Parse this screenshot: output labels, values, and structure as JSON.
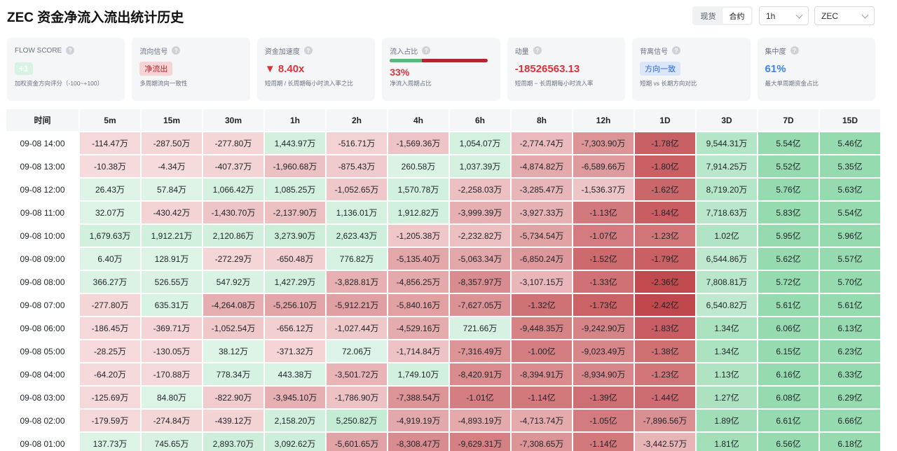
{
  "page": {
    "title": "ZEC 资金净流入流出统计历史"
  },
  "controls": {
    "market_tabs": [
      {
        "label": "现货",
        "active": false
      },
      {
        "label": "合约",
        "active": true
      }
    ],
    "interval": {
      "value": "1h"
    },
    "symbol": {
      "value": "ZEC"
    }
  },
  "cards": {
    "flow_score": {
      "label": "FLOW SCORE",
      "value": "+1",
      "sub": "加权资金方向评分（-100~+100）"
    },
    "flow_signal": {
      "label": "流向信号",
      "value": "净流出",
      "sub": "多周期流向一致性"
    },
    "acceleration": {
      "label": "资金加速度",
      "value": "▼ 8.40x",
      "sub": "短周期 / 长周期每小时流入率之比"
    },
    "inflow_ratio": {
      "label": "流入占比",
      "value": "33%",
      "fraction": 0.33,
      "sub": "净流入周期占比"
    },
    "momentum": {
      "label": "动量",
      "value": "-18526563.13",
      "sub": "短周期 − 长周期每小时流入率"
    },
    "divergence": {
      "label": "背离信号",
      "value": "方向一致",
      "sub": "短期 vs 长期方向对比"
    },
    "concentration": {
      "label": "集中度",
      "value": "61%",
      "sub": "最大单周期资金占比"
    }
  },
  "colors": {
    "green_base": "#d9f2e3",
    "red_base": "#f3d0d1",
    "accent_red": "#e0313b",
    "accent_blue": "#3b82f6"
  },
  "table": {
    "headers": [
      "时间",
      "5m",
      "15m",
      "30m",
      "1h",
      "2h",
      "4h",
      "6h",
      "8h",
      "12h",
      "1D",
      "3D",
      "7D",
      "15D"
    ],
    "rows": [
      {
        "time": "09-08 14:00",
        "cells": [
          {
            "t": "-114.47万",
            "v": -114.47
          },
          {
            "t": "-287.50万",
            "v": -287.5
          },
          {
            "t": "-277.80万",
            "v": -277.8
          },
          {
            "t": "1,443.97万",
            "v": 1443.97
          },
          {
            "t": "-516.71万",
            "v": -516.71
          },
          {
            "t": "-1,569.36万",
            "v": -1569.36
          },
          {
            "t": "1,054.07万",
            "v": 1054.07
          },
          {
            "t": "-2,774.74万",
            "v": -2774.74
          },
          {
            "t": "-7,303.90万",
            "v": -7303.9
          },
          {
            "t": "-1.78亿",
            "v": -17800
          },
          {
            "t": "9,544.31万",
            "v": 9544.31
          },
          {
            "t": "5.54亿",
            "v": 55400
          },
          {
            "t": "5.46亿",
            "v": 54600
          }
        ]
      },
      {
        "time": "09-08 13:00",
        "cells": [
          {
            "t": "-10.38万",
            "v": -10.38
          },
          {
            "t": "-4.34万",
            "v": -4.34
          },
          {
            "t": "-407.37万",
            "v": -407.37
          },
          {
            "t": "-1,960.68万",
            "v": -1960.68
          },
          {
            "t": "-875.43万",
            "v": -875.43
          },
          {
            "t": "260.58万",
            "v": 260.58
          },
          {
            "t": "1,037.39万",
            "v": 1037.39
          },
          {
            "t": "-4,874.82万",
            "v": -4874.82
          },
          {
            "t": "-6,589.66万",
            "v": -6589.66
          },
          {
            "t": "-1.80亿",
            "v": -18000
          },
          {
            "t": "7,914.25万",
            "v": 7914.25
          },
          {
            "t": "5.52亿",
            "v": 55200
          },
          {
            "t": "5.35亿",
            "v": 53500
          }
        ]
      },
      {
        "time": "09-08 12:00",
        "cells": [
          {
            "t": "26.43万",
            "v": 26.43
          },
          {
            "t": "57.84万",
            "v": 57.84
          },
          {
            "t": "1,066.42万",
            "v": 1066.42
          },
          {
            "t": "1,085.25万",
            "v": 1085.25
          },
          {
            "t": "-1,052.65万",
            "v": -1052.65
          },
          {
            "t": "1,570.78万",
            "v": 1570.78
          },
          {
            "t": "-2,258.03万",
            "v": -2258.03
          },
          {
            "t": "-3,285.47万",
            "v": -3285.47
          },
          {
            "t": "-1,536.37万",
            "v": -1536.37
          },
          {
            "t": "-1.62亿",
            "v": -16200
          },
          {
            "t": "8,719.20万",
            "v": 8719.2
          },
          {
            "t": "5.76亿",
            "v": 57600
          },
          {
            "t": "5.63亿",
            "v": 56300
          }
        ]
      },
      {
        "time": "09-08 11:00",
        "cells": [
          {
            "t": "32.07万",
            "v": 32.07
          },
          {
            "t": "-430.42万",
            "v": -430.42
          },
          {
            "t": "-1,430.70万",
            "v": -1430.7
          },
          {
            "t": "-2,137.90万",
            "v": -2137.9
          },
          {
            "t": "1,136.01万",
            "v": 1136.01
          },
          {
            "t": "1,912.82万",
            "v": 1912.82
          },
          {
            "t": "-3,999.39万",
            "v": -3999.39
          },
          {
            "t": "-3,927.33万",
            "v": -3927.33
          },
          {
            "t": "-1.13亿",
            "v": -11300
          },
          {
            "t": "-1.84亿",
            "v": -18400
          },
          {
            "t": "7,718.63万",
            "v": 7718.63
          },
          {
            "t": "5.83亿",
            "v": 58300
          },
          {
            "t": "5.54亿",
            "v": 55400
          }
        ]
      },
      {
        "time": "09-08 10:00",
        "cells": [
          {
            "t": "1,679.63万",
            "v": 1679.63
          },
          {
            "t": "1,912.21万",
            "v": 1912.21
          },
          {
            "t": "2,120.86万",
            "v": 2120.86
          },
          {
            "t": "3,273.90万",
            "v": 3273.9
          },
          {
            "t": "2,623.43万",
            "v": 2623.43
          },
          {
            "t": "-1,205.38万",
            "v": -1205.38
          },
          {
            "t": "-2,232.82万",
            "v": -2232.82
          },
          {
            "t": "-5,734.54万",
            "v": -5734.54
          },
          {
            "t": "-1.07亿",
            "v": -10700
          },
          {
            "t": "-1.23亿",
            "v": -12300
          },
          {
            "t": "1.02亿",
            "v": 10200
          },
          {
            "t": "5.95亿",
            "v": 59500
          },
          {
            "t": "5.96亿",
            "v": 59600
          }
        ]
      },
      {
        "time": "09-08 09:00",
        "cells": [
          {
            "t": "6.40万",
            "v": 6.4
          },
          {
            "t": "128.91万",
            "v": 128.91
          },
          {
            "t": "-272.29万",
            "v": -272.29
          },
          {
            "t": "-650.48万",
            "v": -650.48
          },
          {
            "t": "776.82万",
            "v": 776.82
          },
          {
            "t": "-5,135.40万",
            "v": -5135.4
          },
          {
            "t": "-5,063.34万",
            "v": -5063.34
          },
          {
            "t": "-6,850.24万",
            "v": -6850.24
          },
          {
            "t": "-1.52亿",
            "v": -15200
          },
          {
            "t": "-1.79亿",
            "v": -17900
          },
          {
            "t": "6,544.86万",
            "v": 6544.86
          },
          {
            "t": "5.62亿",
            "v": 56200
          },
          {
            "t": "5.57亿",
            "v": 55700
          }
        ]
      },
      {
        "time": "09-08 08:00",
        "cells": [
          {
            "t": "366.27万",
            "v": 366.27
          },
          {
            "t": "526.55万",
            "v": 526.55
          },
          {
            "t": "547.92万",
            "v": 547.92
          },
          {
            "t": "1,427.29万",
            "v": 1427.29
          },
          {
            "t": "-3,828.81万",
            "v": -3828.81
          },
          {
            "t": "-4,856.25万",
            "v": -4856.25
          },
          {
            "t": "-8,357.97万",
            "v": -8357.97
          },
          {
            "t": "-3,107.15万",
            "v": -3107.15
          },
          {
            "t": "-1.33亿",
            "v": -13300
          },
          {
            "t": "-2.36亿",
            "v": -23600
          },
          {
            "t": "7,808.81万",
            "v": 7808.81
          },
          {
            "t": "5.72亿",
            "v": 57200
          },
          {
            "t": "5.70亿",
            "v": 57000
          }
        ]
      },
      {
        "time": "09-08 07:00",
        "cells": [
          {
            "t": "-277.80万",
            "v": -277.8
          },
          {
            "t": "635.31万",
            "v": 635.31
          },
          {
            "t": "-4,264.08万",
            "v": -4264.08
          },
          {
            "t": "-5,256.10万",
            "v": -5256.1
          },
          {
            "t": "-5,912.21万",
            "v": -5912.21
          },
          {
            "t": "-5,840.16万",
            "v": -5840.16
          },
          {
            "t": "-7,627.05万",
            "v": -7627.05
          },
          {
            "t": "-1.32亿",
            "v": -13200
          },
          {
            "t": "-1.73亿",
            "v": -17300
          },
          {
            "t": "-2.42亿",
            "v": -24200
          },
          {
            "t": "6,540.82万",
            "v": 6540.82
          },
          {
            "t": "5.61亿",
            "v": 56100
          },
          {
            "t": "5.61亿",
            "v": 56100
          }
        ]
      },
      {
        "time": "09-08 06:00",
        "cells": [
          {
            "t": "-186.45万",
            "v": -186.45
          },
          {
            "t": "-369.71万",
            "v": -369.71
          },
          {
            "t": "-1,052.54万",
            "v": -1052.54
          },
          {
            "t": "-656.12万",
            "v": -656.12
          },
          {
            "t": "-1,027.44万",
            "v": -1027.44
          },
          {
            "t": "-4,529.16万",
            "v": -4529.16
          },
          {
            "t": "721.66万",
            "v": 721.66
          },
          {
            "t": "-9,448.35万",
            "v": -9448.35
          },
          {
            "t": "-9,242.90万",
            "v": -9242.9
          },
          {
            "t": "-1.83亿",
            "v": -18300
          },
          {
            "t": "1.34亿",
            "v": 13400
          },
          {
            "t": "6.06亿",
            "v": 60600
          },
          {
            "t": "6.13亿",
            "v": 61300
          }
        ]
      },
      {
        "time": "09-08 05:00",
        "cells": [
          {
            "t": "-28.25万",
            "v": -28.25
          },
          {
            "t": "-130.05万",
            "v": -130.05
          },
          {
            "t": "38.12万",
            "v": 38.12
          },
          {
            "t": "-371.32万",
            "v": -371.32
          },
          {
            "t": "72.06万",
            "v": 72.06
          },
          {
            "t": "-1,714.84万",
            "v": -1714.84
          },
          {
            "t": "-7,316.49万",
            "v": -7316.49
          },
          {
            "t": "-1.00亿",
            "v": -10000
          },
          {
            "t": "-9,023.49万",
            "v": -9023.49
          },
          {
            "t": "-1.38亿",
            "v": -13800
          },
          {
            "t": "1.34亿",
            "v": 13400
          },
          {
            "t": "6.15亿",
            "v": 61500
          },
          {
            "t": "6.23亿",
            "v": 62300
          }
        ]
      },
      {
        "time": "09-08 04:00",
        "cells": [
          {
            "t": "-64.20万",
            "v": -64.2
          },
          {
            "t": "-170.88万",
            "v": -170.88
          },
          {
            "t": "778.34万",
            "v": 778.34
          },
          {
            "t": "443.38万",
            "v": 443.38
          },
          {
            "t": "-3,501.72万",
            "v": -3501.72
          },
          {
            "t": "1,749.10万",
            "v": 1749.1
          },
          {
            "t": "-8,420.91万",
            "v": -8420.91
          },
          {
            "t": "-8,394.91万",
            "v": -8394.91
          },
          {
            "t": "-8,934.90万",
            "v": -8934.9
          },
          {
            "t": "-1.23亿",
            "v": -12300
          },
          {
            "t": "1.13亿",
            "v": 11300
          },
          {
            "t": "6.16亿",
            "v": 61600
          },
          {
            "t": "6.33亿",
            "v": 63300
          }
        ]
      },
      {
        "time": "09-08 03:00",
        "cells": [
          {
            "t": "-125.69万",
            "v": -125.69
          },
          {
            "t": "84.80万",
            "v": 84.8
          },
          {
            "t": "-822.90万",
            "v": -822.9
          },
          {
            "t": "-3,945.10万",
            "v": -3945.1
          },
          {
            "t": "-1,786.90万",
            "v": -1786.9
          },
          {
            "t": "-7,388.54万",
            "v": -7388.54
          },
          {
            "t": "-1.01亿",
            "v": -10100
          },
          {
            "t": "-1.14亿",
            "v": -11400
          },
          {
            "t": "-1.39亿",
            "v": -13900
          },
          {
            "t": "-1.44亿",
            "v": -14400
          },
          {
            "t": "1.27亿",
            "v": 12700
          },
          {
            "t": "6.08亿",
            "v": 60800
          },
          {
            "t": "6.29亿",
            "v": 62900
          }
        ]
      },
      {
        "time": "09-08 02:00",
        "cells": [
          {
            "t": "-179.59万",
            "v": -179.59
          },
          {
            "t": "-274.84万",
            "v": -274.84
          },
          {
            "t": "-439.12万",
            "v": -439.12
          },
          {
            "t": "2,158.20万",
            "v": 2158.2
          },
          {
            "t": "5,250.82万",
            "v": 5250.82
          },
          {
            "t": "-4,919.19万",
            "v": -4919.19
          },
          {
            "t": "-4,893.19万",
            "v": -4893.19
          },
          {
            "t": "-4,713.74万",
            "v": -4713.74
          },
          {
            "t": "-1.05亿",
            "v": -10500
          },
          {
            "t": "-7,896.56万",
            "v": -7896.56
          },
          {
            "t": "1.89亿",
            "v": 18900
          },
          {
            "t": "6.61亿",
            "v": 66100
          },
          {
            "t": "6.66亿",
            "v": 66600
          }
        ]
      },
      {
        "time": "09-08 01:00",
        "cells": [
          {
            "t": "137.73万",
            "v": 137.73
          },
          {
            "t": "745.65万",
            "v": 745.65
          },
          {
            "t": "2,893.70万",
            "v": 2893.7
          },
          {
            "t": "3,092.62万",
            "v": 3092.62
          },
          {
            "t": "-5,601.65万",
            "v": -5601.65
          },
          {
            "t": "-8,308.47万",
            "v": -8308.47
          },
          {
            "t": "-9,629.31万",
            "v": -9629.31
          },
          {
            "t": "-7,308.65万",
            "v": -7308.65
          },
          {
            "t": "-1.14亿",
            "v": -11400
          },
          {
            "t": "-3,442.57万",
            "v": -3442.57
          },
          {
            "t": "1.81亿",
            "v": 18100
          },
          {
            "t": "6.56亿",
            "v": 65600
          },
          {
            "t": "6.18亿",
            "v": 61800
          }
        ]
      }
    ]
  }
}
